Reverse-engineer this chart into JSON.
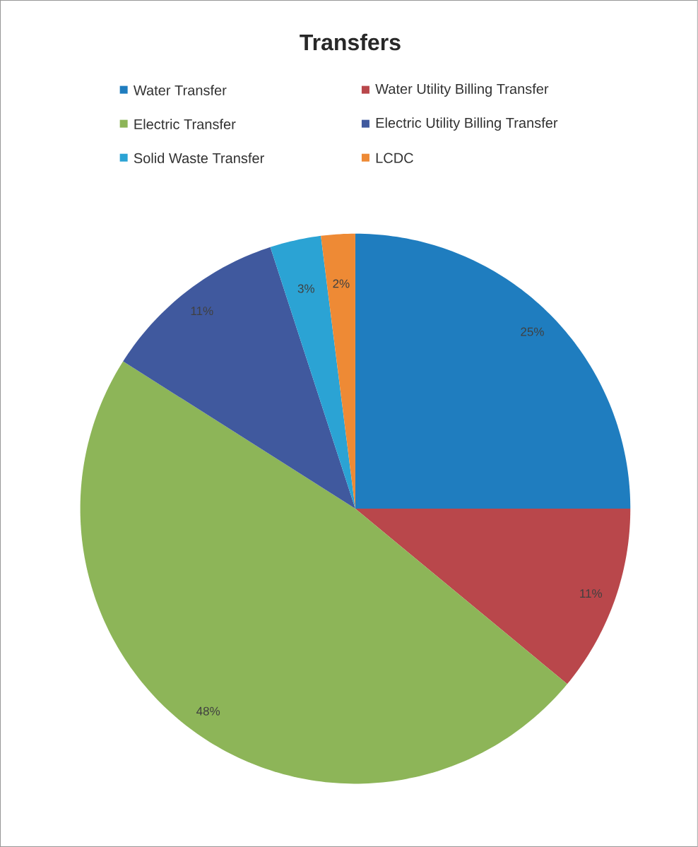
{
  "chart_data": {
    "type": "pie",
    "title": "Transfers",
    "categories": [
      "Water Transfer",
      "Water Utility Billing Transfer",
      "Electric Transfer",
      "Electric Utility Billing Transfer",
      "Solid Waste Transfer",
      "LCDC"
    ],
    "values": [
      25,
      11,
      48,
      11,
      3,
      2
    ],
    "colors": [
      "#1f7dbf",
      "#b9474b",
      "#8db558",
      "#40599e",
      "#2ba3d4",
      "#ee8a35"
    ],
    "value_labels": [
      "25%",
      "11%",
      "48%",
      "11%",
      "3%",
      "2%"
    ],
    "legend": "top"
  }
}
